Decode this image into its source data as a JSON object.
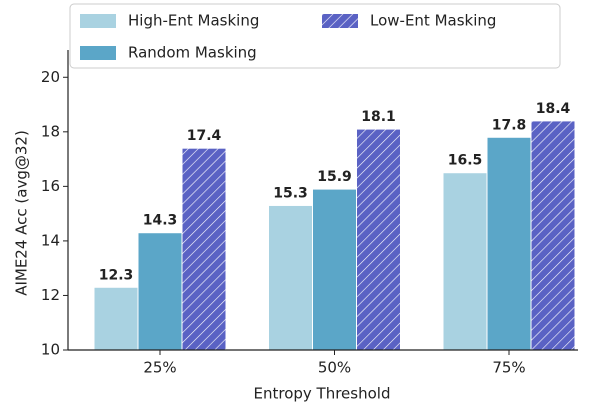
{
  "chart_data": {
    "type": "bar",
    "x_label": "Entropy Threshold",
    "y_label": "AIME24 Acc (avg@32)",
    "categories": [
      "25%",
      "50%",
      "75%"
    ],
    "series": [
      {
        "name": "High-Ent Masking",
        "color": "#a9d2e1",
        "values": [
          12.3,
          15.3,
          16.5
        ]
      },
      {
        "name": "Random Masking",
        "color": "#5ba6c8",
        "values": [
          14.3,
          15.9,
          17.8
        ]
      },
      {
        "name": "Low-Ent Masking",
        "color": "#5a62c4",
        "hatch": true,
        "values": [
          17.4,
          18.1,
          18.4
        ]
      }
    ],
    "ylim": [
      10,
      21
    ],
    "yticks": [
      10,
      12,
      14,
      16,
      18,
      20
    ]
  }
}
